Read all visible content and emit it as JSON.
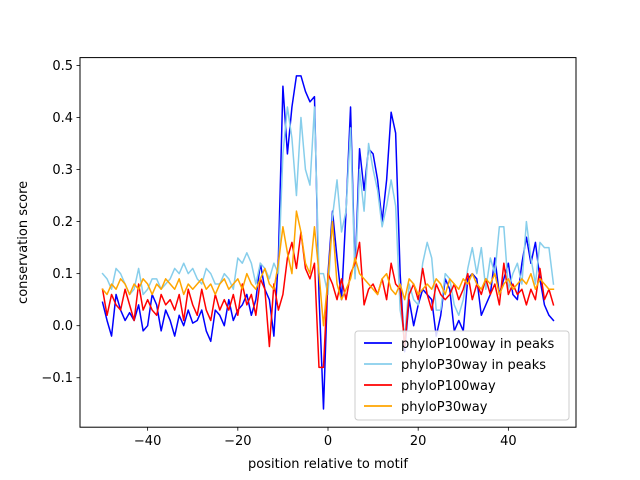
{
  "chart_data": {
    "type": "line",
    "title": "",
    "xlabel": "position relative to motif",
    "ylabel": "conservation score",
    "xlim": [
      -55,
      55
    ],
    "ylim": [
      -0.195,
      0.515
    ],
    "xticks": [
      -40,
      -20,
      0,
      20,
      40
    ],
    "xtick_labels": [
      "−40",
      "−20",
      "0",
      "20",
      "40"
    ],
    "yticks": [
      -0.1,
      0.0,
      0.1,
      0.2,
      0.3,
      0.4,
      0.5
    ],
    "ytick_labels": [
      "−0.1",
      "0.0",
      "0.1",
      "0.2",
      "0.3",
      "0.4",
      "0.5"
    ],
    "grid": false,
    "legend_position": "lower-right",
    "x": [
      -50,
      -49,
      -48,
      -47,
      -46,
      -45,
      -44,
      -43,
      -42,
      -41,
      -40,
      -39,
      -38,
      -37,
      -36,
      -35,
      -34,
      -33,
      -32,
      -31,
      -30,
      -29,
      -28,
      -27,
      -26,
      -25,
      -24,
      -23,
      -22,
      -21,
      -20,
      -19,
      -18,
      -17,
      -16,
      -15,
      -14,
      -13,
      -12,
      -11,
      -10,
      -9,
      -8,
      -7,
      -6,
      -5,
      -4,
      -3,
      -2,
      -1,
      0,
      1,
      2,
      3,
      4,
      5,
      6,
      7,
      8,
      9,
      10,
      11,
      12,
      13,
      14,
      15,
      16,
      17,
      18,
      19,
      20,
      21,
      22,
      23,
      24,
      25,
      26,
      27,
      28,
      29,
      30,
      31,
      32,
      33,
      34,
      35,
      36,
      37,
      38,
      39,
      40,
      41,
      42,
      43,
      44,
      45,
      46,
      47,
      48,
      49,
      50
    ],
    "series": [
      {
        "name": "phyloP100way in peaks",
        "color": "#0000ff",
        "values": [
          0.045,
          0.01,
          -0.02,
          0.06,
          0.03,
          0.01,
          0.025,
          0.01,
          0.04,
          -0.01,
          0.0,
          0.06,
          0.04,
          -0.01,
          0.03,
          0.01,
          -0.02,
          0.02,
          0.0,
          0.03,
          0.005,
          0.01,
          0.03,
          -0.01,
          -0.03,
          0.03,
          0.02,
          0.0,
          0.05,
          0.01,
          0.03,
          0.04,
          0.06,
          0.02,
          0.05,
          0.12,
          0.07,
          0.05,
          -0.02,
          0.13,
          0.46,
          0.33,
          0.42,
          0.48,
          0.48,
          0.45,
          0.43,
          0.44,
          0.06,
          -0.16,
          0.1,
          0.22,
          0.13,
          0.05,
          0.22,
          0.42,
          0.1,
          0.34,
          0.26,
          0.34,
          0.33,
          0.28,
          0.2,
          0.28,
          0.41,
          0.37,
          0.1,
          -0.05,
          0.05,
          0.0,
          0.04,
          0.07,
          0.06,
          0.05,
          -0.02,
          0.02,
          0.09,
          0.07,
          -0.01,
          0.01,
          -0.01,
          0.09,
          0.1,
          0.09,
          0.02,
          0.04,
          0.06,
          0.13,
          0.06,
          0.09,
          0.12,
          0.06,
          0.05,
          0.12,
          0.17,
          0.12,
          0.16,
          0.09,
          0.04,
          0.02,
          0.01
        ]
      },
      {
        "name": "phyloP30way in peaks",
        "color": "#87ceeb",
        "values": [
          0.1,
          0.09,
          0.07,
          0.11,
          0.1,
          0.08,
          0.06,
          0.07,
          0.11,
          0.06,
          0.07,
          0.09,
          0.09,
          0.07,
          0.08,
          0.09,
          0.11,
          0.1,
          0.12,
          0.1,
          0.11,
          0.09,
          0.08,
          0.11,
          0.1,
          0.08,
          0.08,
          0.1,
          0.09,
          0.07,
          0.13,
          0.12,
          0.14,
          0.12,
          0.08,
          0.12,
          0.11,
          0.09,
          0.12,
          0.1,
          0.33,
          0.42,
          0.36,
          0.25,
          0.4,
          0.3,
          0.27,
          0.42,
          0.1,
          0.1,
          0.06,
          0.21,
          0.28,
          0.18,
          0.22,
          0.38,
          0.09,
          0.3,
          0.22,
          0.35,
          0.3,
          0.26,
          0.19,
          0.23,
          0.28,
          0.23,
          0.03,
          -0.02,
          0.08,
          0.05,
          0.04,
          0.12,
          0.16,
          0.13,
          0.03,
          0.03,
          0.1,
          0.09,
          0.04,
          0.02,
          0.05,
          0.11,
          0.15,
          0.1,
          0.15,
          0.07,
          0.13,
          0.1,
          0.19,
          0.19,
          0.07,
          0.1,
          0.12,
          0.08,
          0.2,
          0.13,
          0.08,
          0.16,
          0.15,
          0.15,
          0.08
        ]
      },
      {
        "name": "phyloP100way",
        "color": "#ff0000",
        "values": [
          0.07,
          0.02,
          0.06,
          0.04,
          0.03,
          0.07,
          0.04,
          0.01,
          0.08,
          0.03,
          0.05,
          0.03,
          0.02,
          0.06,
          0.04,
          0.05,
          0.03,
          0.06,
          0.01,
          0.07,
          0.04,
          0.02,
          0.07,
          0.03,
          0.01,
          0.06,
          0.03,
          0.05,
          0.03,
          0.06,
          0.02,
          0.08,
          0.04,
          0.06,
          0.02,
          0.09,
          0.07,
          -0.04,
          0.08,
          0.03,
          0.06,
          0.13,
          0.16,
          0.11,
          0.18,
          0.11,
          0.09,
          0.12,
          -0.08,
          -0.08,
          0.1,
          0.08,
          0.05,
          0.09,
          0.05,
          0.1,
          0.12,
          0.16,
          0.04,
          0.07,
          0.08,
          0.06,
          0.09,
          0.05,
          0.12,
          0.08,
          0.07,
          -0.04,
          0.06,
          0.08,
          0.05,
          0.11,
          0.06,
          0.03,
          0.08,
          0.06,
          0.05,
          0.06,
          0.08,
          0.05,
          0.07,
          0.1,
          0.05,
          0.08,
          0.06,
          0.09,
          0.06,
          0.08,
          0.04,
          0.12,
          0.06,
          0.08,
          0.06,
          0.07,
          0.04,
          0.07,
          0.05,
          0.11,
          0.05,
          0.07,
          0.04
        ]
      },
      {
        "name": "phyloP30way",
        "color": "#ffa500",
        "values": [
          0.07,
          0.06,
          0.08,
          0.07,
          0.09,
          0.08,
          0.06,
          0.08,
          0.07,
          0.09,
          0.08,
          0.06,
          0.08,
          0.07,
          0.09,
          0.08,
          0.07,
          0.09,
          0.06,
          0.08,
          0.07,
          0.08,
          0.09,
          0.07,
          0.08,
          0.06,
          0.08,
          0.09,
          0.07,
          0.08,
          0.09,
          0.07,
          0.1,
          0.08,
          0.07,
          0.09,
          0.11,
          0.08,
          0.07,
          0.12,
          0.19,
          0.14,
          0.1,
          0.22,
          0.18,
          0.12,
          0.1,
          0.19,
          0.1,
          0.0,
          0.09,
          0.2,
          0.08,
          0.05,
          0.07,
          0.09,
          0.13,
          0.1,
          0.09,
          0.08,
          0.07,
          0.06,
          0.09,
          0.1,
          0.07,
          0.06,
          0.08,
          0.05,
          0.09,
          0.08,
          0.06,
          0.07,
          0.08,
          0.07,
          0.09,
          0.08,
          0.06,
          0.09,
          0.08,
          0.07,
          0.09,
          0.08,
          0.1,
          0.08,
          0.07,
          0.09,
          0.08,
          0.1,
          0.06,
          0.08,
          0.09,
          0.07,
          0.08,
          0.09,
          0.08,
          0.1,
          0.07,
          0.09,
          0.08,
          0.07,
          0.07
        ]
      }
    ]
  }
}
